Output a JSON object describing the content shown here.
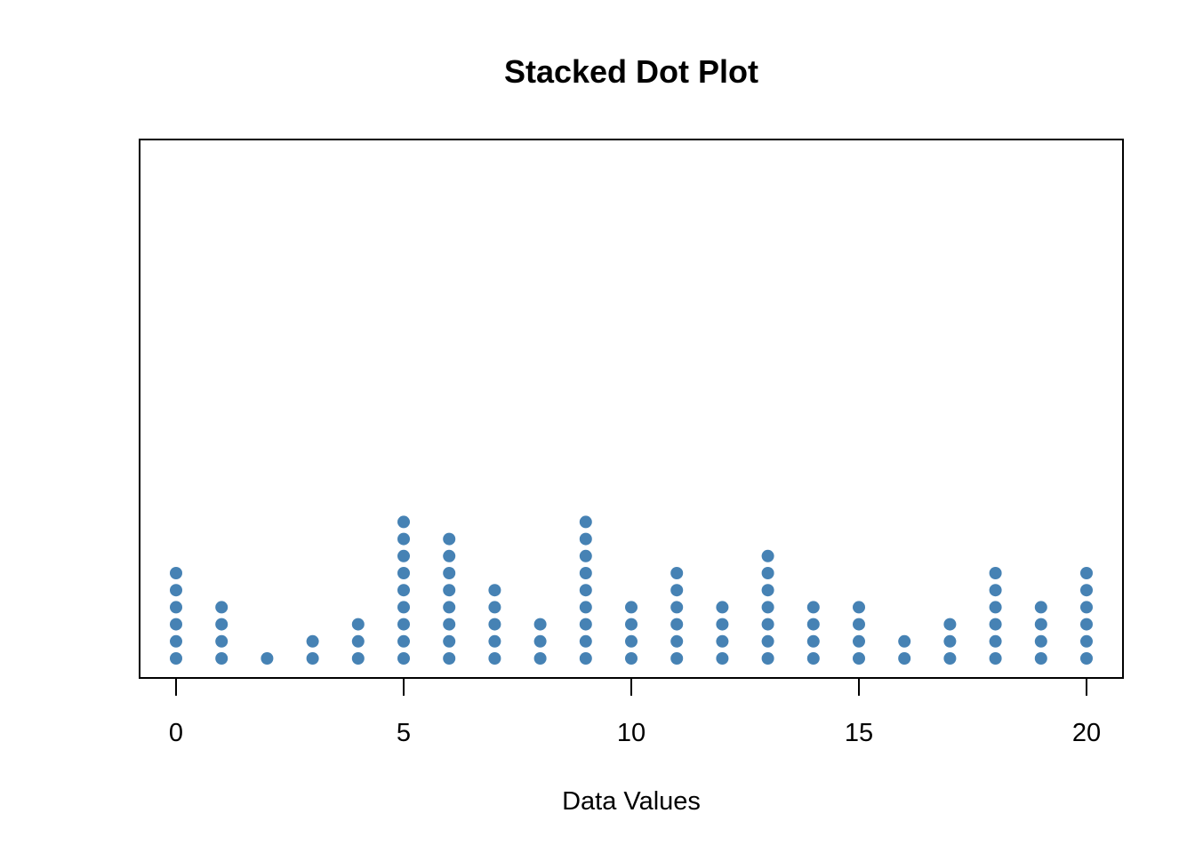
{
  "chart_data": {
    "type": "scatter",
    "subtype": "stacked-dot",
    "title": "Stacked Dot Plot",
    "xlabel": "Data Values",
    "ylabel": "",
    "xlim": [
      0,
      20
    ],
    "x_ticks": [
      0,
      5,
      10,
      15,
      20
    ],
    "x_tick_labels": [
      "0",
      "5",
      "10",
      "15",
      "20"
    ],
    "y_axis_shown": false,
    "grid": false,
    "legend": "none",
    "dot_color": "#4682B4",
    "counts": [
      {
        "x": 0,
        "count": 6
      },
      {
        "x": 1,
        "count": 4
      },
      {
        "x": 2,
        "count": 1
      },
      {
        "x": 3,
        "count": 2
      },
      {
        "x": 4,
        "count": 3
      },
      {
        "x": 5,
        "count": 9
      },
      {
        "x": 6,
        "count": 8
      },
      {
        "x": 7,
        "count": 5
      },
      {
        "x": 8,
        "count": 3
      },
      {
        "x": 9,
        "count": 9
      },
      {
        "x": 10,
        "count": 4
      },
      {
        "x": 11,
        "count": 6
      },
      {
        "x": 12,
        "count": 4
      },
      {
        "x": 13,
        "count": 7
      },
      {
        "x": 14,
        "count": 4
      },
      {
        "x": 15,
        "count": 4
      },
      {
        "x": 16,
        "count": 2
      },
      {
        "x": 17,
        "count": 3
      },
      {
        "x": 18,
        "count": 6
      },
      {
        "x": 19,
        "count": 4
      },
      {
        "x": 20,
        "count": 6
      }
    ]
  }
}
